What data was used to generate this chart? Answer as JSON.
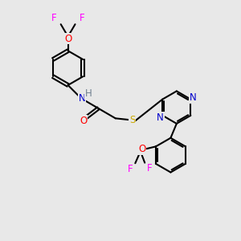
{
  "bg_color": "#e8e8e8",
  "atom_colors": {
    "F": "#ff00ff",
    "O": "#ff0000",
    "N": "#0000cc",
    "H": "#708090",
    "S": "#ccaa00",
    "C": "#000000"
  },
  "bond_color": "#000000",
  "bond_width": 1.5,
  "font_size": 8.5,
  "fig_width": 3.0,
  "fig_height": 3.0,
  "dpi": 100
}
